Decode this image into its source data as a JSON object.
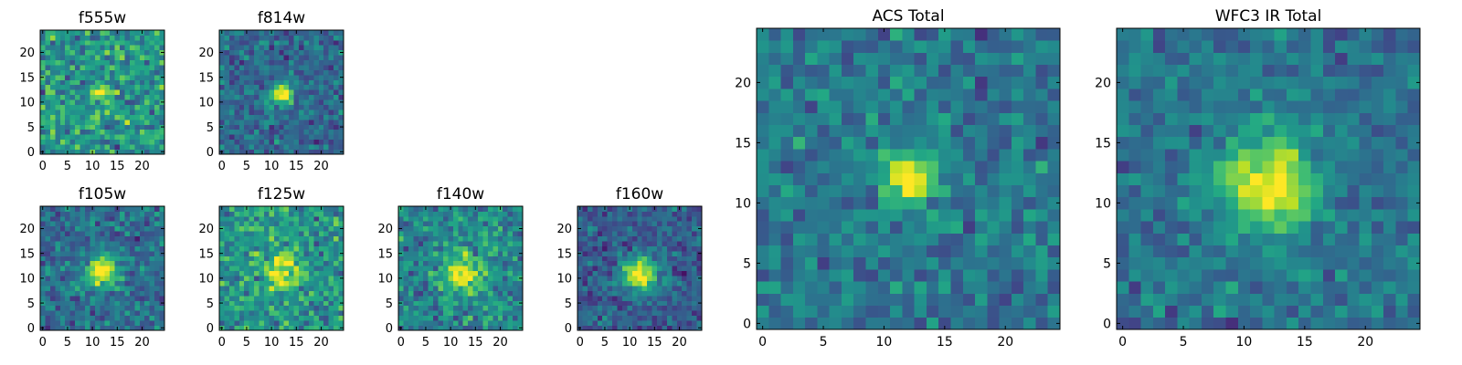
{
  "figure": {
    "colormap": "viridis",
    "panels_description_note": ""
  },
  "chart_data": [
    {
      "type": "heatmap",
      "title": "f555w",
      "size": 25,
      "xticks": [
        0,
        5,
        10,
        15,
        20
      ],
      "yticks": [
        0,
        5,
        10,
        15,
        20
      ],
      "xlim": [
        -0.5,
        24.5
      ],
      "ylim": [
        -0.5,
        24.5
      ],
      "source": {
        "cx": 12,
        "cy": 12,
        "sigma": 1.1,
        "peak": 1.0
      },
      "background": {
        "level": 0.52,
        "noise": 0.2,
        "seed": 11
      }
    },
    {
      "type": "heatmap",
      "title": "f814w",
      "size": 25,
      "xticks": [
        0,
        5,
        10,
        15,
        20
      ],
      "yticks": [
        0,
        5,
        10,
        15,
        20
      ],
      "xlim": [
        -0.5,
        24.5
      ],
      "ylim": [
        -0.5,
        24.5
      ],
      "source": {
        "cx": 12,
        "cy": 11.5,
        "sigma": 1.5,
        "peak": 1.0
      },
      "background": {
        "level": 0.34,
        "noise": 0.14,
        "seed": 23
      }
    },
    {
      "type": "heatmap",
      "title": "f105w",
      "size": 25,
      "xticks": [
        0,
        5,
        10,
        15,
        20
      ],
      "yticks": [
        0,
        5,
        10,
        15,
        20
      ],
      "xlim": [
        -0.5,
        24.5
      ],
      "ylim": [
        -0.5,
        24.5
      ],
      "source": {
        "cx": 12,
        "cy": 11.5,
        "sigma": 2.2,
        "peak": 1.0
      },
      "background": {
        "level": 0.36,
        "noise": 0.15,
        "seed": 37
      }
    },
    {
      "type": "heatmap",
      "title": "f125w",
      "size": 25,
      "xticks": [
        0,
        5,
        10,
        15,
        20
      ],
      "yticks": [
        0,
        5,
        10,
        15,
        20
      ],
      "xlim": [
        -0.5,
        24.5
      ],
      "ylim": [
        -0.5,
        24.5
      ],
      "source": {
        "cx": 12,
        "cy": 11.5,
        "sigma": 2.3,
        "peak": 0.95
      },
      "background": {
        "level": 0.52,
        "noise": 0.18,
        "seed": 41
      }
    },
    {
      "type": "heatmap",
      "title": "f140w",
      "size": 25,
      "xticks": [
        0,
        5,
        10,
        15,
        20
      ],
      "yticks": [
        0,
        5,
        10,
        15,
        20
      ],
      "xlim": [
        -0.5,
        24.5
      ],
      "ylim": [
        -0.5,
        24.5
      ],
      "source": {
        "cx": 12.5,
        "cy": 11,
        "sigma": 2.6,
        "peak": 0.95
      },
      "background": {
        "level": 0.46,
        "noise": 0.17,
        "seed": 53
      }
    },
    {
      "type": "heatmap",
      "title": "f160w",
      "size": 25,
      "xticks": [
        0,
        5,
        10,
        15,
        20
      ],
      "yticks": [
        0,
        5,
        10,
        15,
        20
      ],
      "xlim": [
        -0.5,
        24.5
      ],
      "ylim": [
        -0.5,
        24.5
      ],
      "source": {
        "cx": 12,
        "cy": 11,
        "sigma": 2.4,
        "peak": 1.0
      },
      "background": {
        "level": 0.3,
        "noise": 0.13,
        "seed": 67
      }
    },
    {
      "type": "heatmap",
      "title": "ACS Total",
      "size": 25,
      "xticks": [
        0,
        5,
        10,
        15,
        20
      ],
      "yticks": [
        0,
        5,
        10,
        15,
        20
      ],
      "xlim": [
        -0.5,
        24.5
      ],
      "ylim": [
        -0.5,
        24.5
      ],
      "source": {
        "cx": 12,
        "cy": 12,
        "sigma": 1.5,
        "peak": 1.0
      },
      "background": {
        "level": 0.4,
        "noise": 0.14,
        "seed": 79
      }
    },
    {
      "type": "heatmap",
      "title": "WFC3 IR Total",
      "size": 25,
      "xticks": [
        0,
        5,
        10,
        15,
        20
      ],
      "yticks": [
        0,
        5,
        10,
        15,
        20
      ],
      "xlim": [
        -0.5,
        24.5
      ],
      "ylim": [
        -0.5,
        24.5
      ],
      "source": {
        "cx": 12,
        "cy": 11.5,
        "sigma": 2.6,
        "peak": 1.0
      },
      "background": {
        "level": 0.38,
        "noise": 0.12,
        "seed": 97
      }
    }
  ]
}
